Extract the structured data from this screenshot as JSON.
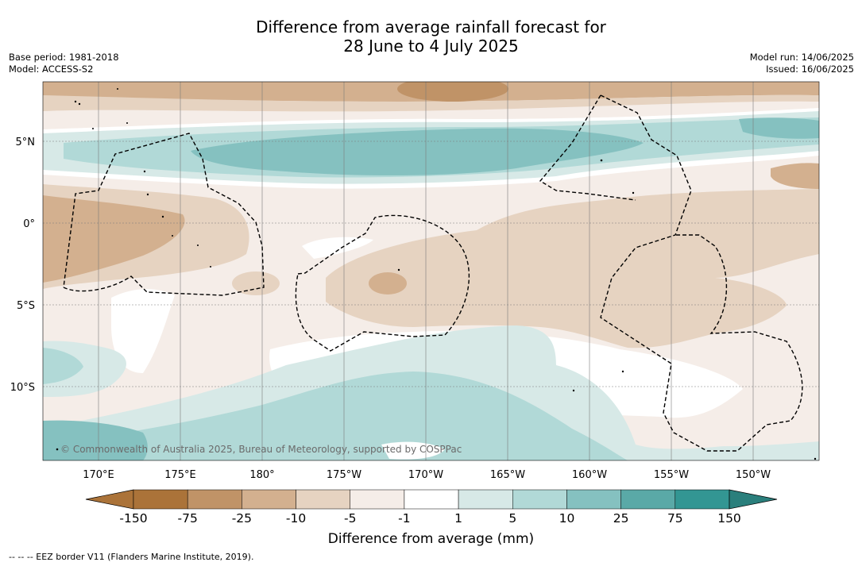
{
  "title_line1": "Difference from average rainfall forecast for",
  "title_line2": "28 June to 4 July 2025",
  "meta_left": [
    "Base period: 1981-2018",
    "Model: ACCESS-S2"
  ],
  "meta_right": [
    "Model run: 14/06/2025",
    "Issued: 16/06/2025"
  ],
  "lon_ticks": [
    "170°E",
    "175°E",
    "180°",
    "175°W",
    "170°W",
    "165°W",
    "160°W",
    "155°W",
    "150°W"
  ],
  "lat_ticks": [
    "5°N",
    "0°",
    "5°S",
    "10°S"
  ],
  "copyright": "© Commonwealth of Australia 2025, Bureau of Meteorology, supported by COSPPac",
  "colorbar": {
    "title": "Difference from average (mm)",
    "labels": [
      "-150",
      "-75",
      "-25",
      "-10",
      "-5",
      "-1",
      "1",
      "5",
      "10",
      "25",
      "75",
      "150"
    ],
    "colors": [
      "#ab7339",
      "#ab7339",
      "#c09367",
      "#d3b08f",
      "#e6d3c1",
      "#f5ede8",
      "#ffffff",
      "#d7e9e7",
      "#b1d9d7",
      "#85c1c0",
      "#5aa9a7",
      "#339693",
      "#2a7f7c"
    ]
  },
  "footer": "--  --  -- EEZ border V11 (Flanders Marine Institute, 2019)."
}
